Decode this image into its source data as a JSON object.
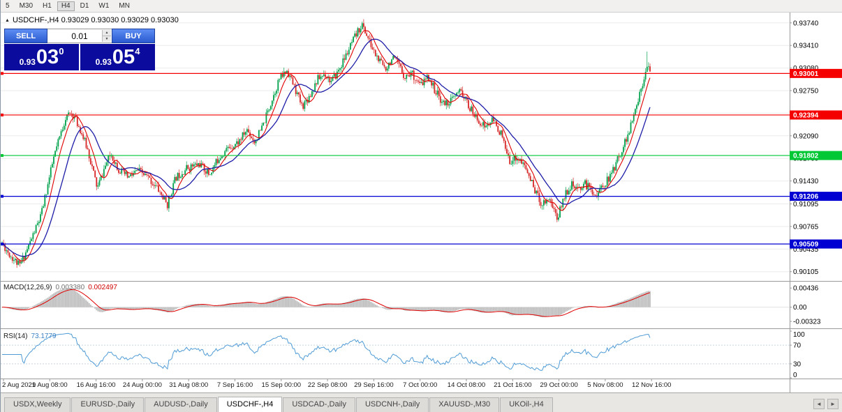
{
  "toolbar": {
    "timeframes": [
      "5",
      "M30",
      "H1",
      "H4",
      "D1",
      "W1",
      "MN"
    ],
    "active": "H4"
  },
  "chart": {
    "title": "USDCHF-,H4 0.93029 0.93030 0.93029 0.93030",
    "trade_widget": {
      "sell_label": "SELL",
      "buy_label": "BUY",
      "lot": "0.01",
      "sell_price_small": "0.93",
      "sell_price_big": "03",
      "sell_price_sup": "0",
      "buy_price_small": "0.93",
      "buy_price_big": "05",
      "buy_price_sup": "4"
    }
  },
  "chart_data": {
    "type": "candlestick",
    "symbol": "USDCHF-",
    "timeframe": "H4",
    "price_range": [
      0.9,
      0.9385
    ],
    "axis_ticks": [
      "0.93740",
      "0.93410",
      "0.93080",
      "0.92750",
      "0.92420",
      "0.92090",
      "0.91760",
      "0.91430",
      "0.91095",
      "0.90765",
      "0.90435",
      "0.90105"
    ],
    "hlines": [
      {
        "price": 0.93001,
        "color": "#f40000",
        "label": "0.93001"
      },
      {
        "price": 0.92394,
        "color": "#f40000",
        "label": "0.92394"
      },
      {
        "price": 0.91802,
        "color": "#00c835",
        "label": "0.91802"
      },
      {
        "price": 0.91206,
        "color": "#0000d2",
        "label": "0.91206"
      },
      {
        "price": 0.90509,
        "color": "#0000d2",
        "label": "0.90509"
      }
    ],
    "x_labels": [
      "2 Aug 2021",
      "9 Aug 08:00",
      "16 Aug 16:00",
      "24 Aug 00:00",
      "31 Aug 08:00",
      "7 Sep 16:00",
      "15 Sep 00:00",
      "22 Sep 08:00",
      "29 Sep 16:00",
      "7 Oct 00:00",
      "14 Oct 08:00",
      "21 Oct 16:00",
      "29 Oct 00:00",
      "5 Nov 08:00",
      "12 Nov 16:00"
    ],
    "num_candles": 440,
    "seed": 11,
    "noise": 0.0006,
    "last_close": 0.9303,
    "ma_fast_period": 8,
    "ma_slow_period": 20,
    "waypoints": [
      [
        0.0,
        0.9052
      ],
      [
        0.012,
        0.9035
      ],
      [
        0.027,
        0.9019
      ],
      [
        0.04,
        0.9046
      ],
      [
        0.06,
        0.9092
      ],
      [
        0.08,
        0.9178
      ],
      [
        0.098,
        0.9236
      ],
      [
        0.108,
        0.9242
      ],
      [
        0.12,
        0.922
      ],
      [
        0.133,
        0.9186
      ],
      [
        0.147,
        0.9132
      ],
      [
        0.158,
        0.9162
      ],
      [
        0.168,
        0.9183
      ],
      [
        0.18,
        0.916
      ],
      [
        0.195,
        0.9148
      ],
      [
        0.21,
        0.9158
      ],
      [
        0.225,
        0.9148
      ],
      [
        0.24,
        0.9132
      ],
      [
        0.255,
        0.9108
      ],
      [
        0.268,
        0.9148
      ],
      [
        0.285,
        0.9162
      ],
      [
        0.305,
        0.9168
      ],
      [
        0.32,
        0.9152
      ],
      [
        0.335,
        0.9178
      ],
      [
        0.35,
        0.9192
      ],
      [
        0.365,
        0.92
      ],
      [
        0.378,
        0.9218
      ],
      [
        0.39,
        0.92
      ],
      [
        0.402,
        0.9222
      ],
      [
        0.415,
        0.9258
      ],
      [
        0.428,
        0.9292
      ],
      [
        0.44,
        0.9305
      ],
      [
        0.452,
        0.9278
      ],
      [
        0.463,
        0.9252
      ],
      [
        0.475,
        0.9268
      ],
      [
        0.487,
        0.9292
      ],
      [
        0.498,
        0.93
      ],
      [
        0.508,
        0.9288
      ],
      [
        0.518,
        0.9302
      ],
      [
        0.53,
        0.9325
      ],
      [
        0.542,
        0.9348
      ],
      [
        0.555,
        0.9372
      ],
      [
        0.562,
        0.9358
      ],
      [
        0.572,
        0.9335
      ],
      [
        0.582,
        0.9318
      ],
      [
        0.592,
        0.9308
      ],
      [
        0.602,
        0.9322
      ],
      [
        0.612,
        0.9312
      ],
      [
        0.622,
        0.9295
      ],
      [
        0.632,
        0.9302
      ],
      [
        0.645,
        0.9282
      ],
      [
        0.658,
        0.9295
      ],
      [
        0.67,
        0.9272
      ],
      [
        0.682,
        0.9255
      ],
      [
        0.695,
        0.9262
      ],
      [
        0.708,
        0.9275
      ],
      [
        0.72,
        0.9252
      ],
      [
        0.732,
        0.9235
      ],
      [
        0.745,
        0.9222
      ],
      [
        0.758,
        0.9232
      ],
      [
        0.77,
        0.9212
      ],
      [
        0.782,
        0.9172
      ],
      [
        0.795,
        0.9178
      ],
      [
        0.808,
        0.9162
      ],
      [
        0.82,
        0.9135
      ],
      [
        0.832,
        0.911
      ],
      [
        0.845,
        0.9118
      ],
      [
        0.857,
        0.9088
      ],
      [
        0.868,
        0.9122
      ],
      [
        0.878,
        0.9138
      ],
      [
        0.888,
        0.9128
      ],
      [
        0.898,
        0.914
      ],
      [
        0.908,
        0.9132
      ],
      [
        0.918,
        0.9122
      ],
      [
        0.928,
        0.9138
      ],
      [
        0.938,
        0.9148
      ],
      [
        0.948,
        0.917
      ],
      [
        0.958,
        0.9192
      ],
      [
        0.968,
        0.9215
      ],
      [
        0.978,
        0.9248
      ],
      [
        0.988,
        0.9285
      ],
      [
        0.996,
        0.9318
      ],
      [
        1.0,
        0.9303
      ]
    ],
    "spikes": [
      {
        "frac": 0.027,
        "low": 0.9018
      },
      {
        "frac": 0.108,
        "high": 0.9246
      },
      {
        "frac": 0.255,
        "low": 0.91
      },
      {
        "frac": 0.555,
        "high": 0.9375
      },
      {
        "frac": 0.857,
        "low": 0.9084
      },
      {
        "frac": 0.996,
        "high": 0.9332
      }
    ],
    "colors": {
      "bull": "#00a14b",
      "bear": "#d62626",
      "ma_fast": "#e00000",
      "ma_slow": "#1d1da8",
      "grid": "#ebebeb",
      "rsi": "#4f9bd5",
      "macd_hist": "#bdbdbd",
      "macd_signal": "#e00000"
    },
    "indicators": {
      "macd": {
        "label": "MACD(12,26,9)",
        "value_main": "0.003380",
        "value_signal": "0.002497",
        "axis": [
          "0.00436",
          "0.00",
          "-0.00323"
        ],
        "range": [
          -0.0045,
          0.0055
        ]
      },
      "rsi": {
        "label": "RSI(14)",
        "value": "73.1779",
        "axis": [
          100,
          70,
          30,
          0
        ],
        "levels": [
          70,
          30
        ]
      }
    }
  },
  "tabs": {
    "items": [
      "USDX,Weekly",
      "EURUSD-,Daily",
      "AUDUSD-,Daily",
      "USDCHF-,H4",
      "USDCAD-,Daily",
      "USDCNH-,Daily",
      "XAUUSD-,M30",
      "UKOil-,H4"
    ],
    "active": "USDCHF-,H4",
    "scroll_left": "◄",
    "scroll_right": "►"
  }
}
